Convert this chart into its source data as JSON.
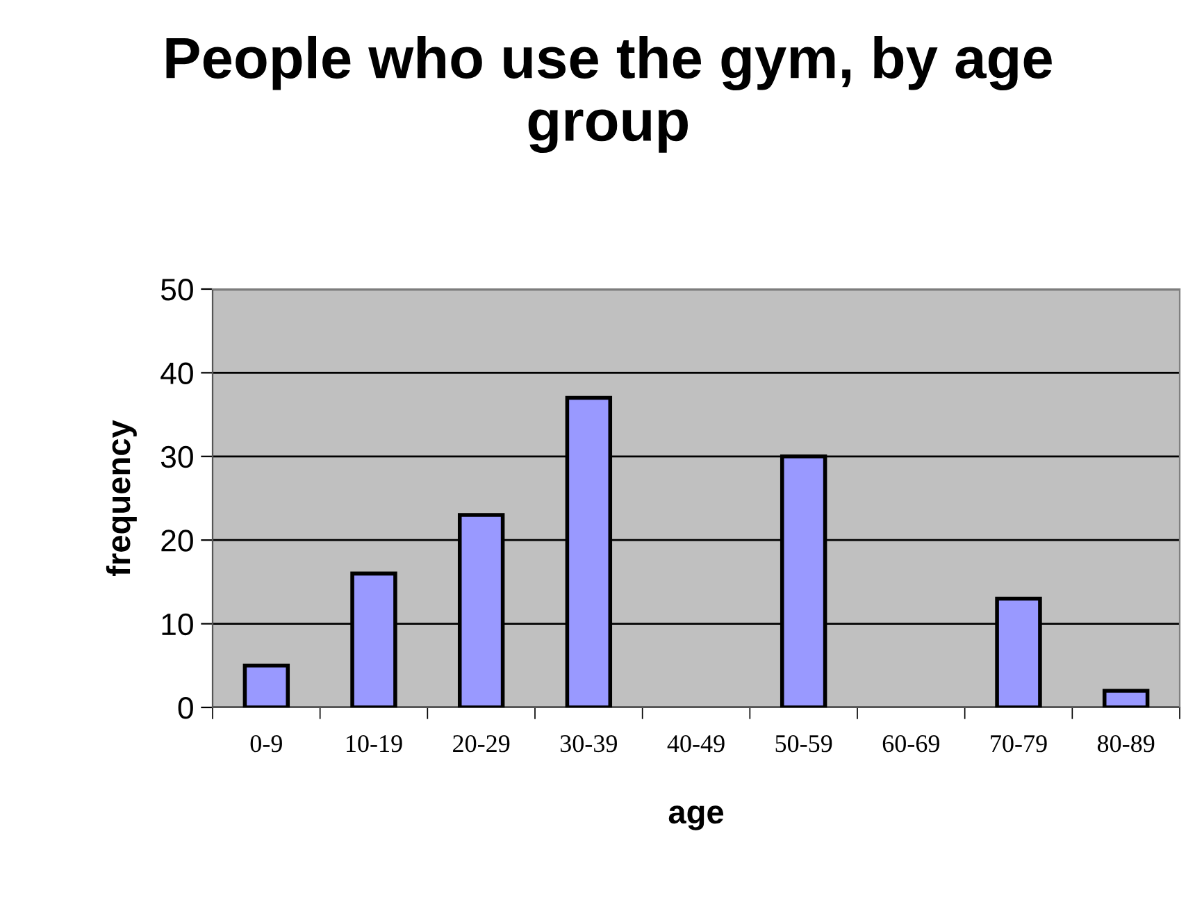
{
  "chart_data": {
    "type": "bar",
    "title": "People who use the gym, by age group",
    "xlabel": "age",
    "ylabel": "frequency",
    "categories": [
      "0-9",
      "10-19",
      "20-29",
      "30-39",
      "40-49",
      "50-59",
      "60-69",
      "70-79",
      "80-89"
    ],
    "values": [
      5,
      16,
      23,
      37,
      0,
      30,
      0,
      13,
      2
    ],
    "color": "#9999ff",
    "ylim": [
      0,
      50
    ],
    "yticks": [
      0,
      10,
      20,
      30,
      40,
      50
    ],
    "grid": "y",
    "legend": false
  }
}
